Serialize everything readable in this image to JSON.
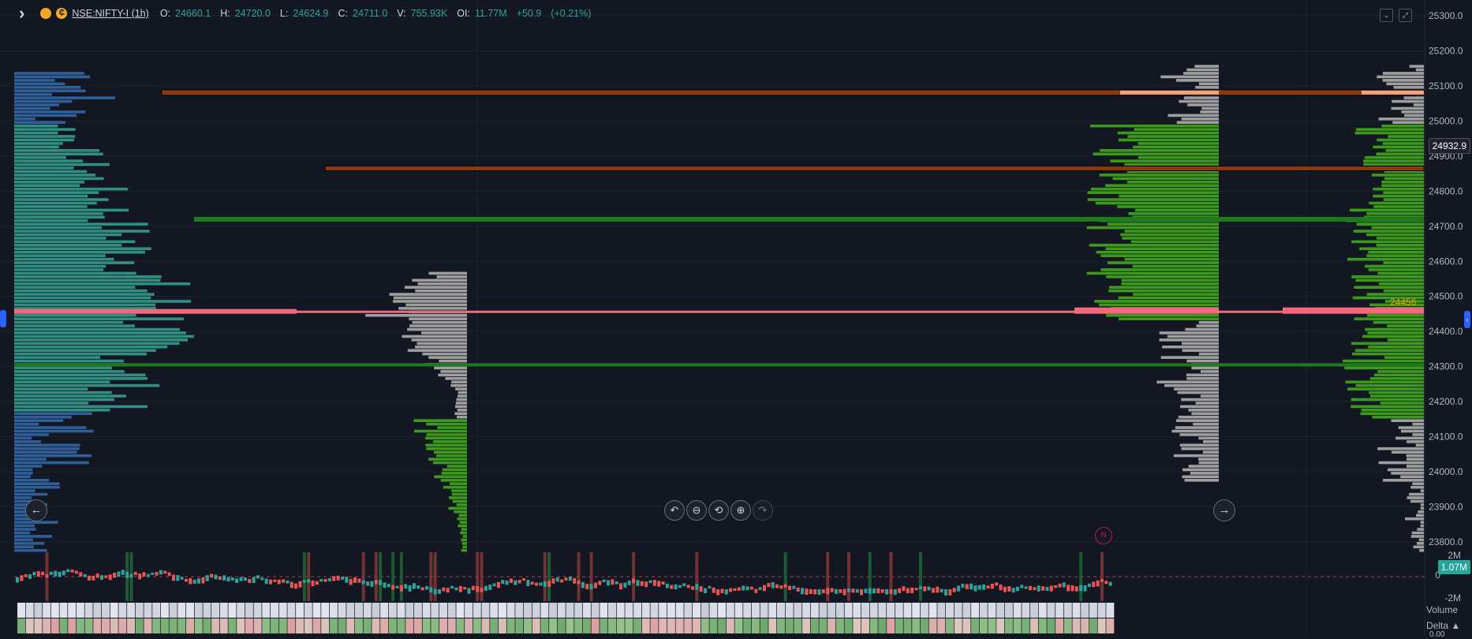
{
  "legend": {
    "symbol": "NSE:NIFTY-I (1h)",
    "o_label": "O:",
    "o": "24660.1",
    "h_label": "H:",
    "h": "24720.0",
    "l_label": "L:",
    "l": "24624.9",
    "c_label": "C:",
    "c": "24711.0",
    "v_label": "V:",
    "v": "755.93K",
    "oi_label": "OI:",
    "oi": "11.77M",
    "change": "+50.9",
    "change_pct": "(+0.21%)",
    "dot2_text": "₵"
  },
  "price_axis": {
    "ticks": [
      "25300.0",
      "25200.0",
      "25100.0",
      "25000.0",
      "24900.0",
      "24800.0",
      "24700.0",
      "24600.0",
      "24500.0",
      "24400.0",
      "24300.0",
      "24200.0",
      "24100.0",
      "24000.0",
      "23900.0",
      "23800.0"
    ],
    "current_price": "24932.9",
    "poc_label": "24456"
  },
  "volume_axis": {
    "top": "2M",
    "zero": "0",
    "bottom": "-2M",
    "current": "1.07M"
  },
  "panes": {
    "volume_label": "Volume",
    "delta_label": "Delta ▲",
    "delta_value": "0.00"
  },
  "marker": {
    "label": "N"
  },
  "buttons": {
    "back_icon": "←",
    "forward_icon": "→",
    "undo_icon": "↶",
    "zoom_out_icon": "⊖",
    "reset_icon": "⟲",
    "zoom_in_icon": "⊕",
    "redo_icon": "↷",
    "collapse_icon": "⌄",
    "expand_icon": "⤢",
    "left_edge_icon": "",
    "right_edge_icon": "‹"
  },
  "colors": {
    "background": "#131722",
    "grid": "#1e222d",
    "up": "#26a69a",
    "down": "#ef5350",
    "profile_blue": "#2f5f99",
    "profile_teal": "#2f8f82",
    "profile_gray": "#9e9e9e",
    "profile_green": "#3c9a1a",
    "poc": "#f06a7c",
    "level_orange": "#8b3a0f",
    "level_green": "#1f7a1f"
  },
  "chart_data": {
    "type": "volume-profile",
    "y_axis_range": [
      23750,
      25330
    ],
    "poc_price": 24456,
    "current_price": 24932.9,
    "levels": [
      {
        "price": 25080,
        "kind": "resistance"
      },
      {
        "price": 24865,
        "kind": "resistance"
      },
      {
        "price": 24720,
        "kind": "support"
      },
      {
        "price": 24455,
        "kind": "poc"
      },
      {
        "price": 24305,
        "kind": "support"
      }
    ],
    "profile_blocks": [
      {
        "name": "left-session",
        "low": 23770,
        "high": 25140,
        "value_area_low": 24170,
        "value_area_high": 25000
      },
      {
        "name": "mid-session",
        "low": 23770,
        "high": 24570,
        "value_area_low": 23790,
        "value_area_high": 24160
      },
      {
        "name": "composite-1",
        "low": 23970,
        "high": 25160,
        "value_area_low": 24430,
        "value_area_high": 25000
      },
      {
        "name": "composite-2",
        "low": 23770,
        "high": 25160,
        "value_area_low": 24150,
        "value_area_high": 25000
      }
    ]
  }
}
